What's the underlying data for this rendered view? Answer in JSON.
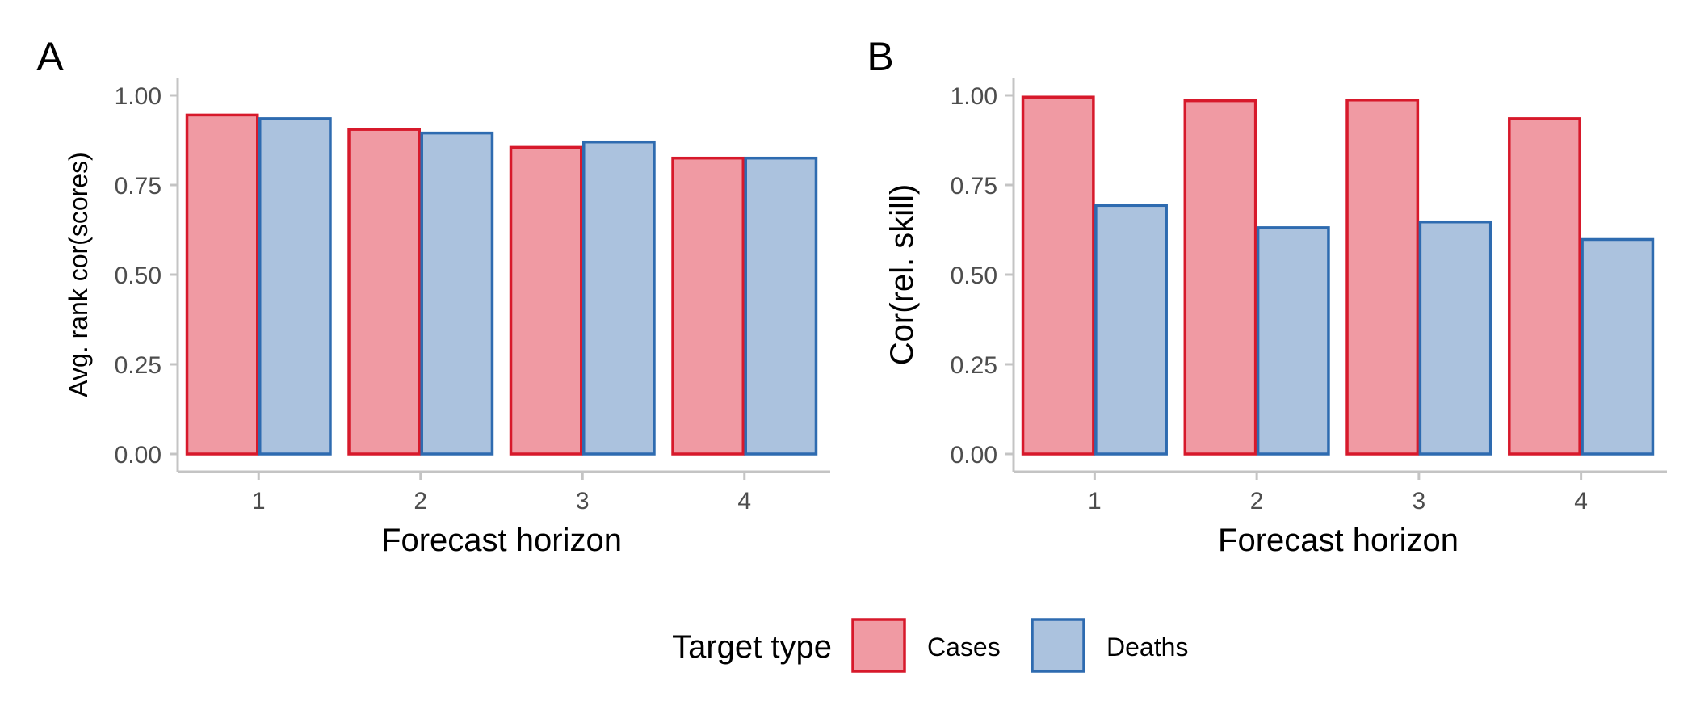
{
  "chart_data": [
    {
      "type": "bar",
      "panel_label": "A",
      "xlabel": "Forecast horizon",
      "ylabel": "Avg. rank cor(scores)",
      "categories": [
        "1",
        "2",
        "3",
        "4"
      ],
      "ylim": [
        0,
        1
      ],
      "yticks": [
        "0.00",
        "0.25",
        "0.50",
        "0.75",
        "1.00"
      ],
      "grid": false,
      "series": [
        {
          "name": "Cases",
          "values": [
            0.945,
            0.905,
            0.855,
            0.825
          ]
        },
        {
          "name": "Deaths",
          "values": [
            0.935,
            0.895,
            0.87,
            0.825
          ]
        }
      ]
    },
    {
      "type": "bar",
      "panel_label": "B",
      "xlabel": "Forecast horizon",
      "ylabel": "Cor(rel. skill)",
      "categories": [
        "1",
        "2",
        "3",
        "4"
      ],
      "ylim": [
        0,
        1
      ],
      "yticks": [
        "0.00",
        "0.25",
        "0.50",
        "0.75",
        "1.00"
      ],
      "grid": false,
      "series": [
        {
          "name": "Cases",
          "values": [
            0.995,
            0.985,
            0.987,
            0.935
          ]
        },
        {
          "name": "Deaths",
          "values": [
            0.693,
            0.631,
            0.647,
            0.598
          ]
        }
      ]
    }
  ],
  "legend": {
    "title": "Target type",
    "position": "bottom",
    "items": [
      {
        "label": "Cases",
        "fill": "#f09aa3",
        "stroke": "#d7192b"
      },
      {
        "label": "Deaths",
        "fill": "#abc2de",
        "stroke": "#2e6bb0"
      }
    ]
  },
  "colors": {
    "cases_fill": "#f09aa3",
    "cases_stroke": "#d7192b",
    "deaths_fill": "#abc2de",
    "deaths_stroke": "#2e6bb0",
    "axis": "#c4c4c4"
  }
}
